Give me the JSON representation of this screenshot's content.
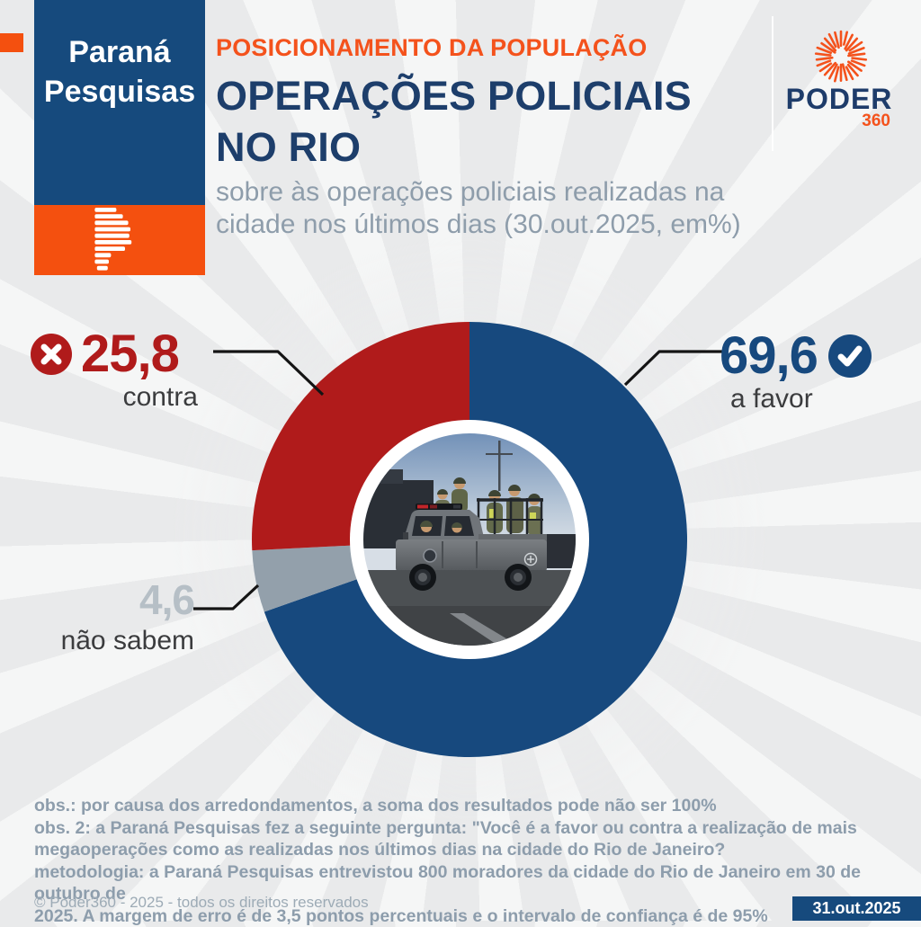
{
  "brand": {
    "name_line1": "Paraná",
    "name_line2": "Pesquisas",
    "logo": "parana-pesquisas-striped-p"
  },
  "header": {
    "kicker": "POSICIONAMENTO DA POPULAÇÃO",
    "title_line1": "OPERAÇÕES POLICIAIS",
    "title_line2": "NO RIO",
    "subtitle_line1": "sobre às operações policiais realizadas na",
    "subtitle_line2": "cidade nos últimos dias (30.out.2025, em%)"
  },
  "poder_logo": {
    "word": "PODER",
    "number": "360",
    "icon": "orange-sunburst-icon",
    "blue": "#1e3c6a",
    "orange": "#f4521c"
  },
  "chart_data": {
    "type": "pie",
    "subtype": "donut",
    "title": "Posicionamento da população sobre às operações policiais no Rio (30.out.2025, em %)",
    "unit": "%",
    "start_angle": "top",
    "direction": "clockwise",
    "slices": [
      {
        "label": "a favor",
        "value": 69.6,
        "display": "69,6",
        "color": "#17497e",
        "icon": "check-circle-icon"
      },
      {
        "label": "não sabem",
        "value": 4.6,
        "display": "4,6",
        "color": "#93a0ab",
        "icon": null
      },
      {
        "label": "contra",
        "value": 25.8,
        "display": "25,8",
        "color": "#b01b1b",
        "icon": "x-circle-icon"
      }
    ],
    "center_image": "policia-militar-truck-photo"
  },
  "notes": {
    "lines": [
      "obs.: por causa dos arredondamentos, a soma dos resultados pode não ser 100%",
      "obs. 2: a Paraná Pesquisas fez a seguinte pergunta: \"Você é a favor ou contra a realização de mais",
      "megaoperações como as realizadas nos últimos dias na cidade do Rio de Janeiro?",
      "metodologia: a Paraná Pesquisas entrevistou 800 moradores da cidade do Rio de Janeiro em 30 de outubro de",
      "2025. A margem de erro é de 3,5 pontos percentuais e o intervalo de confiança é de 95%"
    ]
  },
  "footer": {
    "copyright": "© Poder360 - 2025 - todos os direitos reservados",
    "date": "31.out.2025"
  }
}
